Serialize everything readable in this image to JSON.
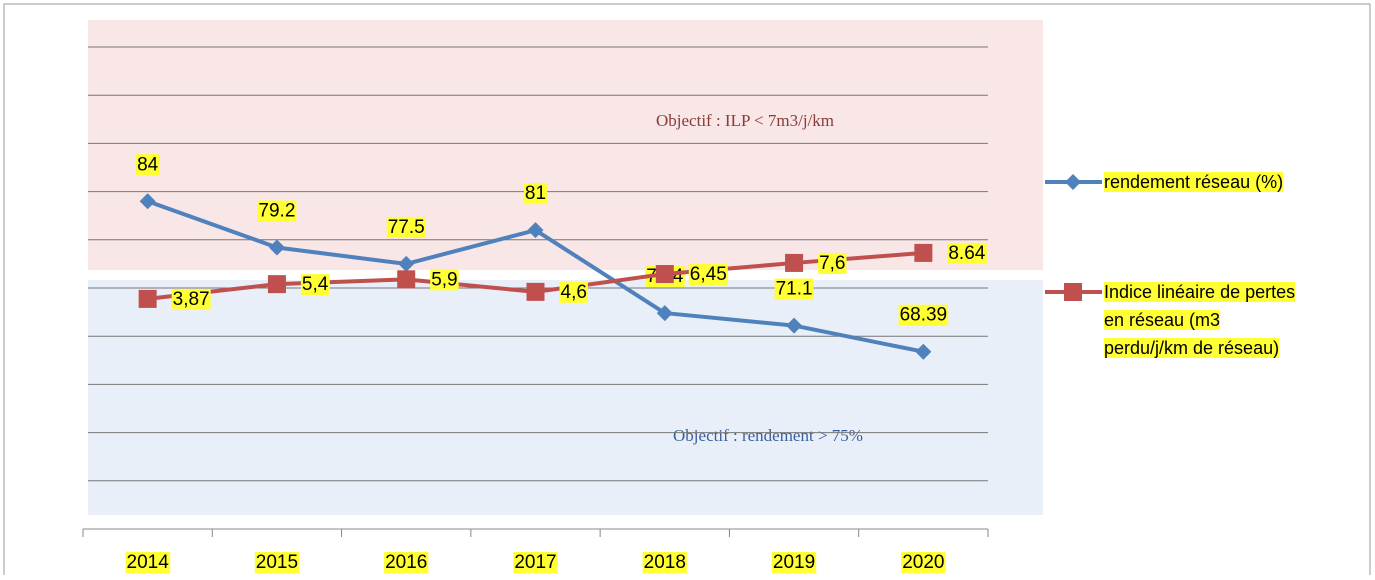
{
  "chart_data": {
    "type": "line",
    "categories": [
      "2014",
      "2015",
      "2016",
      "2017",
      "2018",
      "2019",
      "2020"
    ],
    "series": [
      {
        "name": "rendement réseau (%)",
        "color": "#4f81bd",
        "marker": "diamond",
        "values": [
          84,
          79.2,
          77.5,
          81,
          72.4,
          71.1,
          68.39
        ]
      },
      {
        "name": "Indice linéaire de pertes en réseau (m3 perdu/j/km de réseau)",
        "color": "#c0504d",
        "marker": "square",
        "axis": "y2",
        "values": [
          3.87,
          5.4,
          5.9,
          4.6,
          6.45,
          7.6,
          8.64
        ],
        "value_labels": [
          "3,87",
          "5,4",
          "5,9",
          "4,6",
          "6,45",
          "7,6",
          "8.64"
        ]
      }
    ],
    "annotations": [
      "Objectif :  ILP < 7m3/j/km",
      "Objectif :  rendement > 75%"
    ],
    "ylim": [
      50,
      100
    ],
    "yticks": [
      50,
      55,
      60,
      65,
      70,
      75,
      80,
      85,
      90,
      95,
      100
    ],
    "y2lim": [
      -20,
      30
    ],
    "grid": true
  }
}
